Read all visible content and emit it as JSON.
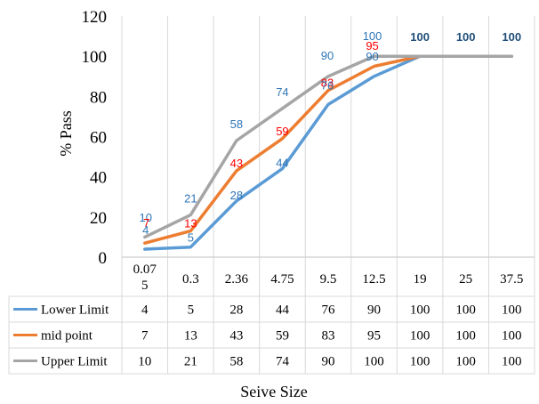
{
  "chart_data": {
    "type": "line",
    "title": "",
    "xlabel": "Seive Size",
    "ylabel": "% Pass",
    "ylim": [
      0,
      120
    ],
    "yticks": [
      0,
      20,
      40,
      60,
      80,
      100,
      120
    ],
    "categories": [
      "0.075",
      "0.3",
      "2.36",
      "4.75",
      "9.5",
      "12.5",
      "19",
      "25",
      "37.5"
    ],
    "category_display": [
      [
        "0.07",
        "5"
      ],
      [
        "0.3"
      ],
      [
        "2.36"
      ],
      [
        "4.75"
      ],
      [
        "9.5"
      ],
      [
        "12.5"
      ],
      [
        "19"
      ],
      [
        "25"
      ],
      [
        "37.5"
      ]
    ],
    "grid": "vertical",
    "legend": "data-table",
    "series": [
      {
        "name": "Lower Limit",
        "color": "#5b9bd5",
        "values": [
          4,
          5,
          28,
          44,
          76,
          90,
          100,
          100,
          100
        ]
      },
      {
        "name": "mid point",
        "color": "#ed7d31",
        "values": [
          7,
          13,
          43,
          59,
          83,
          95,
          100,
          100,
          100
        ]
      },
      {
        "name": "Upper Limit",
        "color": "#a5a5a5",
        "values": [
          10,
          21,
          58,
          74,
          90,
          100,
          100,
          100,
          100
        ]
      }
    ],
    "data_label_colors": {
      "Lower Limit": "#2e75b6",
      "mid point": "#ff0000",
      "Upper Limit": "#2e75b6",
      "top": "#1f4e79"
    }
  }
}
